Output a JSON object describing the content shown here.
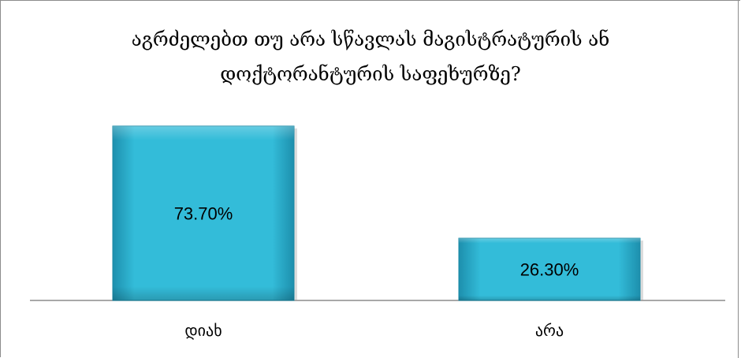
{
  "chart_data": {
    "type": "bar",
    "title_lines": [
      "აგრძელებთ თუ არა სწავლას მაგისტრატურის ან",
      "დოქტორანტურის საფეხურზე?"
    ],
    "categories": [
      "დიახ",
      "არა"
    ],
    "values": [
      73.7,
      26.3
    ],
    "data_labels": [
      "73.70%",
      "26.30%"
    ],
    "ylim": [
      0,
      80
    ],
    "grid": false,
    "legend": "none",
    "bar_color": "#2fb6d4",
    "bar_color_dark": "#1b8aa6"
  }
}
